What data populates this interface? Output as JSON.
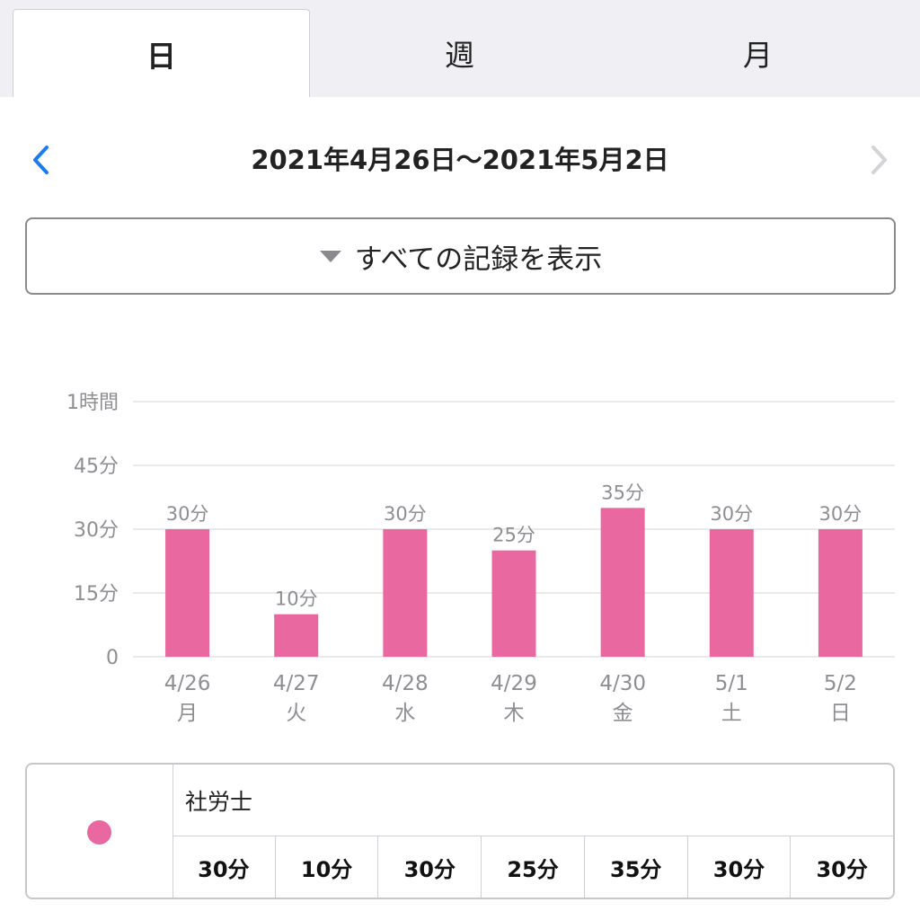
{
  "tabs": [
    {
      "label": "日",
      "active": true
    },
    {
      "label": "週",
      "active": false
    },
    {
      "label": "月",
      "active": false
    }
  ],
  "date_nav": {
    "range": "2021年4月26日〜2021年5月2日",
    "prev_icon": "chevron-left-icon",
    "next_icon": "chevron-right-icon",
    "next_enabled": false
  },
  "filter": {
    "icon": "triangle-down-icon",
    "label": "すべての記録を表示"
  },
  "chart_data": {
    "type": "bar",
    "categories": [
      "4/26",
      "4/27",
      "4/28",
      "4/29",
      "4/30",
      "5/1",
      "5/2"
    ],
    "weekdays": [
      "月",
      "火",
      "水",
      "木",
      "金",
      "土",
      "日"
    ],
    "values": [
      30,
      10,
      30,
      25,
      35,
      30,
      30
    ],
    "value_labels": [
      "30分",
      "10分",
      "30分",
      "25分",
      "35分",
      "30分",
      "30分"
    ],
    "y_ticks": [
      {
        "value": 0,
        "label": "0"
      },
      {
        "value": 15,
        "label": "15分"
      },
      {
        "value": 30,
        "label": "30分"
      },
      {
        "value": 45,
        "label": "45分"
      },
      {
        "value": 60,
        "label": "1時間"
      }
    ],
    "ylim": [
      0,
      60
    ],
    "unit": "分",
    "grid": true,
    "bar_color": "#e8689f"
  },
  "legend": {
    "name": "社労士",
    "color": "#e8689f",
    "values": [
      "30分",
      "10分",
      "30分",
      "25分",
      "35分",
      "30分",
      "30分"
    ]
  },
  "colors": {
    "accent": "#1a7cf0",
    "disabled": "#d4d4d8",
    "grid": "#e3e3e6",
    "axis_text": "#8e8e93"
  }
}
